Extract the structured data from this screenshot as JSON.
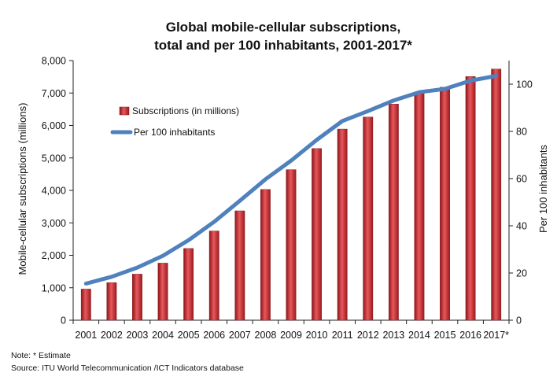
{
  "chart_data": {
    "type": "bar",
    "title": [
      "Global mobile-cellular subscriptions,",
      "total and per 100 inhabitants, 2001-2017*"
    ],
    "categories": [
      "2001",
      "2002",
      "2003",
      "2004",
      "2005",
      "2006",
      "2007",
      "2008",
      "2009",
      "2010",
      "2011",
      "2012",
      "2013",
      "2014",
      "2015",
      "2016",
      "2017*"
    ],
    "series": [
      {
        "name": "Subscriptions (in millions)",
        "type": "bar",
        "axis": "left",
        "color": "#c0272d",
        "values": [
          960,
          1160,
          1420,
          1760,
          2210,
          2750,
          3370,
          4030,
          4640,
          5290,
          5890,
          6260,
          6660,
          7000,
          7180,
          7510,
          7740
        ]
      },
      {
        "name": "Per 100 inhabitants",
        "type": "line",
        "axis": "right",
        "color": "#4f81bd",
        "values": [
          15.5,
          18.4,
          22.3,
          27.3,
          33.9,
          41.7,
          50.6,
          59.7,
          67.6,
          76.4,
          84.4,
          88.6,
          93.1,
          96.6,
          98.0,
          101.5,
          103.5
        ]
      }
    ],
    "ylabel_left": "Mobile-cellular subscriptions  (millions)",
    "ylabel_right": "Per 100 inhabitants",
    "ylim_left": [
      0,
      8000
    ],
    "ylim_right": [
      0,
      110
    ],
    "yticks_left": [
      0,
      1000,
      2000,
      3000,
      4000,
      5000,
      6000,
      7000,
      8000
    ],
    "ytick_labels_left": [
      "0",
      "1,000",
      "2,000",
      "3,000",
      "4,000",
      "5,000",
      "6,000",
      "7,000",
      "8,000"
    ],
    "yticks_right": [
      0,
      20,
      40,
      60,
      80,
      100
    ],
    "ytick_labels_right": [
      "0",
      "20",
      "40",
      "60",
      "80",
      "100"
    ],
    "grid": false,
    "legend_position": "top-left"
  },
  "notes": {
    "note": "Note: * Estimate",
    "source": "Source:  ITU World Telecommunication /ICT Indicators database"
  }
}
